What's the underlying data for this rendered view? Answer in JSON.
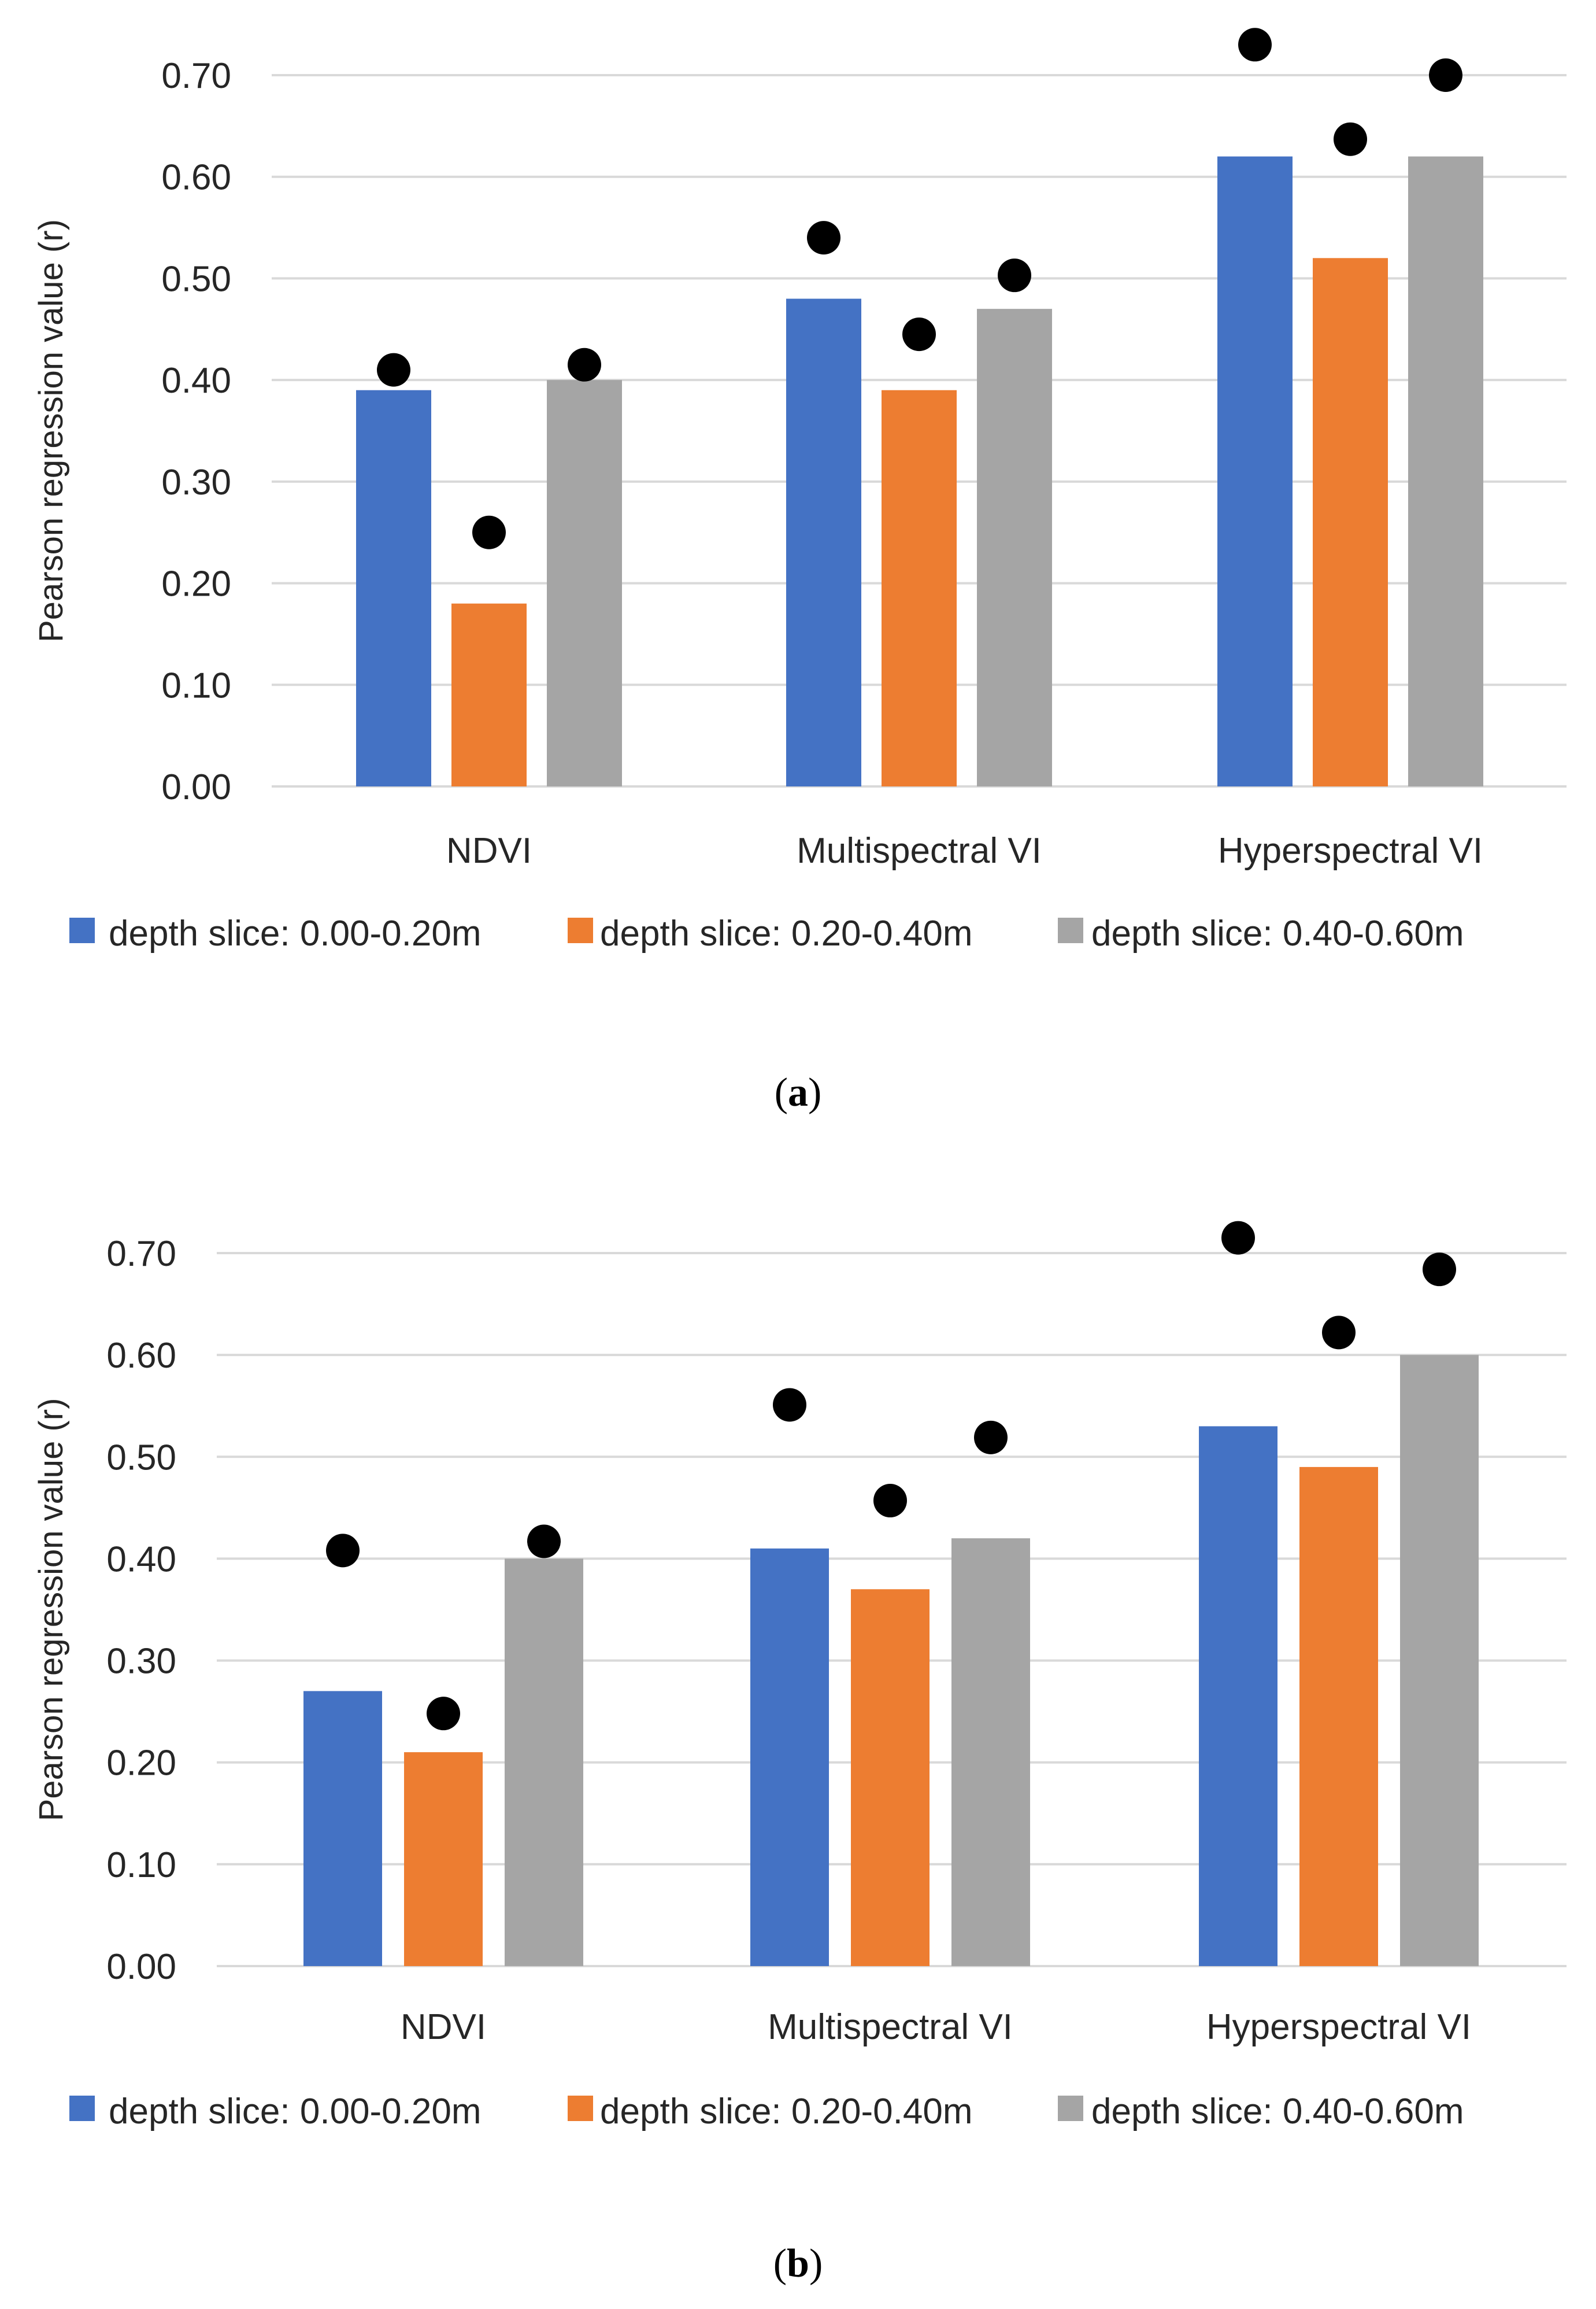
{
  "colors": {
    "series_0": "#4472C4",
    "series_1": "#ED7D31",
    "series_2": "#A5A5A5",
    "marker": "#000000",
    "grid": "#D9D9D9",
    "text": "#262626"
  },
  "chart_data": [
    {
      "type": "bar",
      "panel_label": "a",
      "title": "",
      "xlabel": "",
      "ylabel": "Pearson regression value (r)",
      "ylim": [
        0,
        0.7
      ],
      "yticks": [
        "0.00",
        "0.10",
        "0.20",
        "0.30",
        "0.40",
        "0.50",
        "0.60",
        "0.70"
      ],
      "categories": [
        "NDVI",
        "Multispectral VI",
        "Hyperspectral VI"
      ],
      "series": [
        {
          "name": "depth slice: 0.00-0.20m",
          "values": [
            0.39,
            0.48,
            0.62
          ],
          "markers": [
            0.41,
            0.54,
            0.73
          ]
        },
        {
          "name": "depth slice: 0.20-0.40m",
          "values": [
            0.18,
            0.39,
            0.52
          ],
          "markers": [
            0.25,
            0.445,
            0.637
          ]
        },
        {
          "name": "depth slice: 0.40-0.60m",
          "values": [
            0.4,
            0.47,
            0.62
          ],
          "markers": [
            0.415,
            0.503,
            0.7
          ]
        }
      ],
      "legend_position": "bottom",
      "grid": true
    },
    {
      "type": "bar",
      "panel_label": "b",
      "title": "",
      "xlabel": "",
      "ylabel": "Pearson regression value (r)",
      "ylim": [
        0,
        0.7
      ],
      "yticks": [
        "0.00",
        "0.10",
        "0.20",
        "0.30",
        "0.40",
        "0.50",
        "0.60",
        "0.70"
      ],
      "categories": [
        "NDVI",
        "Multispectral VI",
        "Hyperspectral VI"
      ],
      "series": [
        {
          "name": "depth slice: 0.00-0.20m",
          "values": [
            0.27,
            0.41,
            0.53
          ],
          "markers": [
            0.408,
            0.551,
            0.715
          ]
        },
        {
          "name": "depth slice: 0.20-0.40m",
          "values": [
            0.21,
            0.37,
            0.49
          ],
          "markers": [
            0.248,
            0.457,
            0.622
          ]
        },
        {
          "name": "depth slice: 0.40-0.60m",
          "values": [
            0.4,
            0.42,
            0.6
          ],
          "markers": [
            0.417,
            0.519,
            0.684
          ]
        }
      ],
      "legend_position": "bottom",
      "grid": true
    }
  ]
}
